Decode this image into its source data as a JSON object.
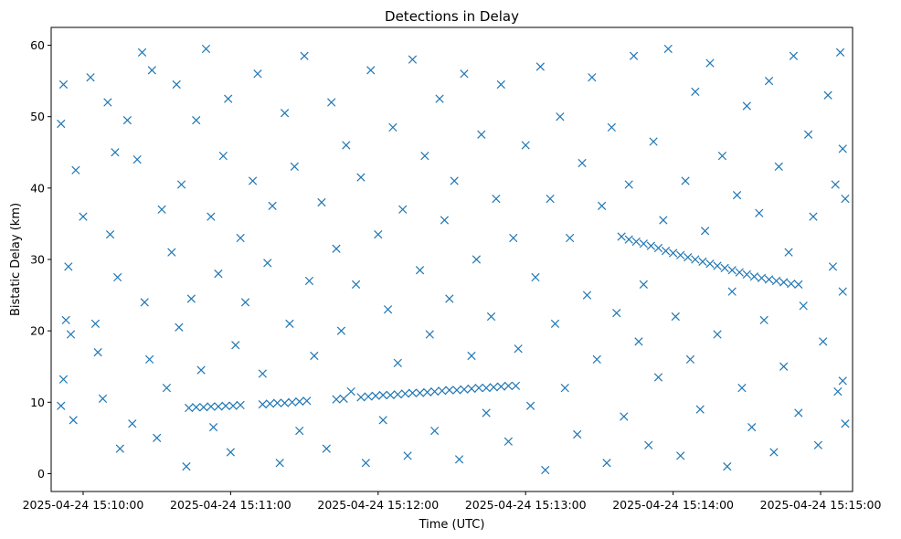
{
  "chart_data": {
    "type": "scatter",
    "title": "Detections in Delay",
    "xlabel": "Time (UTC)",
    "ylabel": "Bistatic Delay (km)",
    "marker": "x",
    "color": "#1f77b4",
    "grid": false,
    "legend": "none",
    "xlim": [
      "2025-04-24 15:09:47",
      "2025-04-24 15:15:13"
    ],
    "ylim": [
      -2.5,
      62.5
    ],
    "xticks": [
      "2025-04-24 15:10:00",
      "2025-04-24 15:11:00",
      "2025-04-24 15:12:00",
      "2025-04-24 15:13:00",
      "2025-04-24 15:14:00",
      "2025-04-24 15:15:00"
    ],
    "yticks": [
      0,
      10,
      20,
      30,
      40,
      50,
      60
    ],
    "series": [
      {
        "values": [
          [
            "2025-04-24 15:10:43",
            9.2
          ],
          [
            "2025-04-24 15:10:46",
            9.3
          ],
          [
            "2025-04-24 15:10:49",
            9.3
          ],
          [
            "2025-04-24 15:10:52",
            9.4
          ],
          [
            "2025-04-24 15:10:55",
            9.4
          ],
          [
            "2025-04-24 15:10:58",
            9.5
          ],
          [
            "2025-04-24 15:11:01",
            9.5
          ],
          [
            "2025-04-24 15:11:04",
            9.6
          ],
          [
            "2025-04-24 15:11:13",
            9.7
          ],
          [
            "2025-04-24 15:11:16",
            9.8
          ],
          [
            "2025-04-24 15:11:19",
            9.9
          ],
          [
            "2025-04-24 15:11:22",
            9.9
          ],
          [
            "2025-04-24 15:11:25",
            10.0
          ],
          [
            "2025-04-24 15:11:28",
            10.1
          ],
          [
            "2025-04-24 15:11:31",
            10.2
          ],
          [
            "2025-04-24 15:11:43",
            10.4
          ],
          [
            "2025-04-24 15:11:46",
            10.5
          ],
          [
            "2025-04-24 15:11:53",
            10.7
          ],
          [
            "2025-04-24 15:11:56",
            10.8
          ],
          [
            "2025-04-24 15:11:59",
            10.9
          ],
          [
            "2025-04-24 15:12:02",
            11.0
          ],
          [
            "2025-04-24 15:12:05",
            11.0
          ],
          [
            "2025-04-24 15:12:08",
            11.1
          ],
          [
            "2025-04-24 15:12:11",
            11.2
          ],
          [
            "2025-04-24 15:12:14",
            11.3
          ],
          [
            "2025-04-24 15:12:17",
            11.3
          ],
          [
            "2025-04-24 15:12:20",
            11.4
          ],
          [
            "2025-04-24 15:12:23",
            11.5
          ],
          [
            "2025-04-24 15:12:26",
            11.6
          ],
          [
            "2025-04-24 15:12:29",
            11.7
          ],
          [
            "2025-04-24 15:12:32",
            11.7
          ],
          [
            "2025-04-24 15:12:35",
            11.8
          ],
          [
            "2025-04-24 15:12:38",
            11.9
          ],
          [
            "2025-04-24 15:12:41",
            12.0
          ],
          [
            "2025-04-24 15:12:44",
            12.0
          ],
          [
            "2025-04-24 15:12:47",
            12.1
          ],
          [
            "2025-04-24 15:12:50",
            12.2
          ],
          [
            "2025-04-24 15:12:53",
            12.3
          ],
          [
            "2025-04-24 15:12:56",
            12.3
          ],
          [
            "2025-04-24 15:13:39",
            33.2
          ],
          [
            "2025-04-24 15:13:42",
            32.8
          ],
          [
            "2025-04-24 15:13:45",
            32.5
          ],
          [
            "2025-04-24 15:13:48",
            32.2
          ],
          [
            "2025-04-24 15:13:51",
            31.9
          ],
          [
            "2025-04-24 15:13:54",
            31.6
          ],
          [
            "2025-04-24 15:13:57",
            31.2
          ],
          [
            "2025-04-24 15:14:00",
            30.9
          ],
          [
            "2025-04-24 15:14:03",
            30.6
          ],
          [
            "2025-04-24 15:14:06",
            30.3
          ],
          [
            "2025-04-24 15:14:09",
            30.0
          ],
          [
            "2025-04-24 15:14:12",
            29.7
          ],
          [
            "2025-04-24 15:14:15",
            29.4
          ],
          [
            "2025-04-24 15:14:18",
            29.1
          ],
          [
            "2025-04-24 15:14:21",
            28.8
          ],
          [
            "2025-04-24 15:14:24",
            28.5
          ],
          [
            "2025-04-24 15:14:27",
            28.2
          ],
          [
            "2025-04-24 15:14:30",
            27.9
          ],
          [
            "2025-04-24 15:14:33",
            27.6
          ],
          [
            "2025-04-24 15:14:36",
            27.4
          ],
          [
            "2025-04-24 15:14:39",
            27.2
          ],
          [
            "2025-04-24 15:14:42",
            27.0
          ],
          [
            "2025-04-24 15:14:45",
            26.8
          ],
          [
            "2025-04-24 15:14:48",
            26.6
          ],
          [
            "2025-04-24 15:14:51",
            26.5
          ],
          [
            "2025-04-24 15:09:51",
            49.0
          ],
          [
            "2025-04-24 15:09:52",
            54.5
          ],
          [
            "2025-04-24 15:09:54",
            29.0
          ],
          [
            "2025-04-24 15:09:52",
            13.2
          ],
          [
            "2025-04-24 15:09:53",
            21.5
          ],
          [
            "2025-04-24 15:09:55",
            19.5
          ],
          [
            "2025-04-24 15:09:51",
            9.5
          ],
          [
            "2025-04-24 15:09:56",
            7.5
          ],
          [
            "2025-04-24 15:09:57",
            42.5
          ],
          [
            "2025-04-24 15:10:00",
            36.0
          ],
          [
            "2025-04-24 15:10:03",
            55.5
          ],
          [
            "2025-04-24 15:10:05",
            21.0
          ],
          [
            "2025-04-24 15:10:06",
            17.0
          ],
          [
            "2025-04-24 15:10:08",
            10.5
          ],
          [
            "2025-04-24 15:10:10",
            52.0
          ],
          [
            "2025-04-24 15:10:11",
            33.5
          ],
          [
            "2025-04-24 15:10:13",
            45.0
          ],
          [
            "2025-04-24 15:10:14",
            27.5
          ],
          [
            "2025-04-24 15:10:15",
            3.5
          ],
          [
            "2025-04-24 15:10:18",
            49.5
          ],
          [
            "2025-04-24 15:10:20",
            7.0
          ],
          [
            "2025-04-24 15:10:22",
            44.0
          ],
          [
            "2025-04-24 15:10:24",
            59.0
          ],
          [
            "2025-04-24 15:10:25",
            24.0
          ],
          [
            "2025-04-24 15:10:27",
            16.0
          ],
          [
            "2025-04-24 15:10:28",
            56.5
          ],
          [
            "2025-04-24 15:10:30",
            5.0
          ],
          [
            "2025-04-24 15:10:32",
            37.0
          ],
          [
            "2025-04-24 15:10:34",
            12.0
          ],
          [
            "2025-04-24 15:10:36",
            31.0
          ],
          [
            "2025-04-24 15:10:38",
            54.5
          ],
          [
            "2025-04-24 15:10:39",
            20.5
          ],
          [
            "2025-04-24 15:10:40",
            40.5
          ],
          [
            "2025-04-24 15:10:42",
            1.0
          ],
          [
            "2025-04-24 15:10:44",
            24.5
          ],
          [
            "2025-04-24 15:10:46",
            49.5
          ],
          [
            "2025-04-24 15:10:48",
            14.5
          ],
          [
            "2025-04-24 15:10:50",
            59.5
          ],
          [
            "2025-04-24 15:10:52",
            36.0
          ],
          [
            "2025-04-24 15:10:53",
            6.5
          ],
          [
            "2025-04-24 15:10:55",
            28.0
          ],
          [
            "2025-04-24 15:10:57",
            44.5
          ],
          [
            "2025-04-24 15:10:59",
            52.5
          ],
          [
            "2025-04-24 15:11:00",
            3.0
          ],
          [
            "2025-04-24 15:11:02",
            18.0
          ],
          [
            "2025-04-24 15:11:04",
            33.0
          ],
          [
            "2025-04-24 15:11:06",
            24.0
          ],
          [
            "2025-04-24 15:11:09",
            41.0
          ],
          [
            "2025-04-24 15:11:11",
            56.0
          ],
          [
            "2025-04-24 15:11:13",
            14.0
          ],
          [
            "2025-04-24 15:11:15",
            29.5
          ],
          [
            "2025-04-24 15:11:17",
            37.5
          ],
          [
            "2025-04-24 15:11:20",
            1.5
          ],
          [
            "2025-04-24 15:11:22",
            50.5
          ],
          [
            "2025-04-24 15:11:24",
            21.0
          ],
          [
            "2025-04-24 15:11:26",
            43.0
          ],
          [
            "2025-04-24 15:11:28",
            6.0
          ],
          [
            "2025-04-24 15:11:30",
            58.5
          ],
          [
            "2025-04-24 15:11:32",
            27.0
          ],
          [
            "2025-04-24 15:11:34",
            16.5
          ],
          [
            "2025-04-24 15:11:37",
            38.0
          ],
          [
            "2025-04-24 15:11:39",
            3.5
          ],
          [
            "2025-04-24 15:11:41",
            52.0
          ],
          [
            "2025-04-24 15:11:43",
            31.5
          ],
          [
            "2025-04-24 15:11:45",
            20.0
          ],
          [
            "2025-04-24 15:11:47",
            46.0
          ],
          [
            "2025-04-24 15:11:49",
            11.5
          ],
          [
            "2025-04-24 15:11:51",
            26.5
          ],
          [
            "2025-04-24 15:11:53",
            41.5
          ],
          [
            "2025-04-24 15:11:55",
            1.5
          ],
          [
            "2025-04-24 15:11:57",
            56.5
          ],
          [
            "2025-04-24 15:12:00",
            33.5
          ],
          [
            "2025-04-24 15:12:02",
            7.5
          ],
          [
            "2025-04-24 15:12:04",
            23.0
          ],
          [
            "2025-04-24 15:12:06",
            48.5
          ],
          [
            "2025-04-24 15:12:08",
            15.5
          ],
          [
            "2025-04-24 15:12:10",
            37.0
          ],
          [
            "2025-04-24 15:12:12",
            2.5
          ],
          [
            "2025-04-24 15:12:14",
            58.0
          ],
          [
            "2025-04-24 15:12:17",
            28.5
          ],
          [
            "2025-04-24 15:12:19",
            44.5
          ],
          [
            "2025-04-24 15:12:21",
            19.5
          ],
          [
            "2025-04-24 15:12:23",
            6.0
          ],
          [
            "2025-04-24 15:12:25",
            52.5
          ],
          [
            "2025-04-24 15:12:27",
            35.5
          ],
          [
            "2025-04-24 15:12:29",
            24.5
          ],
          [
            "2025-04-24 15:12:31",
            41.0
          ],
          [
            "2025-04-24 15:12:33",
            2.0
          ],
          [
            "2025-04-24 15:12:35",
            56.0
          ],
          [
            "2025-04-24 15:12:38",
            16.5
          ],
          [
            "2025-04-24 15:12:40",
            30.0
          ],
          [
            "2025-04-24 15:12:42",
            47.5
          ],
          [
            "2025-04-24 15:12:44",
            8.5
          ],
          [
            "2025-04-24 15:12:46",
            22.0
          ],
          [
            "2025-04-24 15:12:48",
            38.5
          ],
          [
            "2025-04-24 15:12:50",
            54.5
          ],
          [
            "2025-04-24 15:12:53",
            4.5
          ],
          [
            "2025-04-24 15:12:55",
            33.0
          ],
          [
            "2025-04-24 15:12:57",
            17.5
          ],
          [
            "2025-04-24 15:13:00",
            46.0
          ],
          [
            "2025-04-24 15:13:02",
            9.5
          ],
          [
            "2025-04-24 15:13:04",
            27.5
          ],
          [
            "2025-04-24 15:13:06",
            57.0
          ],
          [
            "2025-04-24 15:13:08",
            0.5
          ],
          [
            "2025-04-24 15:13:10",
            38.5
          ],
          [
            "2025-04-24 15:13:12",
            21.0
          ],
          [
            "2025-04-24 15:13:14",
            50.0
          ],
          [
            "2025-04-24 15:13:16",
            12.0
          ],
          [
            "2025-04-24 15:13:18",
            33.0
          ],
          [
            "2025-04-24 15:13:21",
            5.5
          ],
          [
            "2025-04-24 15:13:23",
            43.5
          ],
          [
            "2025-04-24 15:13:25",
            25.0
          ],
          [
            "2025-04-24 15:13:27",
            55.5
          ],
          [
            "2025-04-24 15:13:29",
            16.0
          ],
          [
            "2025-04-24 15:13:31",
            37.5
          ],
          [
            "2025-04-24 15:13:33",
            1.5
          ],
          [
            "2025-04-24 15:13:35",
            48.5
          ],
          [
            "2025-04-24 15:13:37",
            22.5
          ],
          [
            "2025-04-24 15:13:40",
            8.0
          ],
          [
            "2025-04-24 15:13:42",
            40.5
          ],
          [
            "2025-04-24 15:13:44",
            58.5
          ],
          [
            "2025-04-24 15:13:46",
            18.5
          ],
          [
            "2025-04-24 15:13:48",
            26.5
          ],
          [
            "2025-04-24 15:13:50",
            4.0
          ],
          [
            "2025-04-24 15:13:52",
            46.5
          ],
          [
            "2025-04-24 15:13:54",
            13.5
          ],
          [
            "2025-04-24 15:13:56",
            35.5
          ],
          [
            "2025-04-24 15:13:58",
            59.5
          ],
          [
            "2025-04-24 15:14:01",
            22.0
          ],
          [
            "2025-04-24 15:14:03",
            2.5
          ],
          [
            "2025-04-24 15:14:05",
            41.0
          ],
          [
            "2025-04-24 15:14:07",
            16.0
          ],
          [
            "2025-04-24 15:14:09",
            53.5
          ],
          [
            "2025-04-24 15:14:11",
            9.0
          ],
          [
            "2025-04-24 15:14:13",
            34.0
          ],
          [
            "2025-04-24 15:14:15",
            57.5
          ],
          [
            "2025-04-24 15:14:18",
            19.5
          ],
          [
            "2025-04-24 15:14:20",
            44.5
          ],
          [
            "2025-04-24 15:14:22",
            1.0
          ],
          [
            "2025-04-24 15:14:24",
            25.5
          ],
          [
            "2025-04-24 15:14:26",
            39.0
          ],
          [
            "2025-04-24 15:14:28",
            12.0
          ],
          [
            "2025-04-24 15:14:30",
            51.5
          ],
          [
            "2025-04-24 15:14:32",
            6.5
          ],
          [
            "2025-04-24 15:14:35",
            36.5
          ],
          [
            "2025-04-24 15:14:37",
            21.5
          ],
          [
            "2025-04-24 15:14:39",
            55.0
          ],
          [
            "2025-04-24 15:14:41",
            3.0
          ],
          [
            "2025-04-24 15:14:43",
            43.0
          ],
          [
            "2025-04-24 15:14:45",
            15.0
          ],
          [
            "2025-04-24 15:14:47",
            31.0
          ],
          [
            "2025-04-24 15:14:49",
            58.5
          ],
          [
            "2025-04-24 15:14:51",
            8.5
          ],
          [
            "2025-04-24 15:14:53",
            23.5
          ],
          [
            "2025-04-24 15:14:55",
            47.5
          ],
          [
            "2025-04-24 15:14:57",
            36.0
          ],
          [
            "2025-04-24 15:14:59",
            4.0
          ],
          [
            "2025-04-24 15:15:01",
            18.5
          ],
          [
            "2025-04-24 15:15:03",
            53.0
          ],
          [
            "2025-04-24 15:15:05",
            29.0
          ],
          [
            "2025-04-24 15:15:06",
            40.5
          ],
          [
            "2025-04-24 15:15:07",
            11.5
          ],
          [
            "2025-04-24 15:15:08",
            59.0
          ],
          [
            "2025-04-24 15:15:09",
            25.5
          ],
          [
            "2025-04-24 15:15:09",
            45.5
          ],
          [
            "2025-04-24 15:15:09",
            13.0
          ],
          [
            "2025-04-24 15:15:10",
            38.5
          ],
          [
            "2025-04-24 15:15:10",
            7.0
          ]
        ]
      }
    ]
  }
}
